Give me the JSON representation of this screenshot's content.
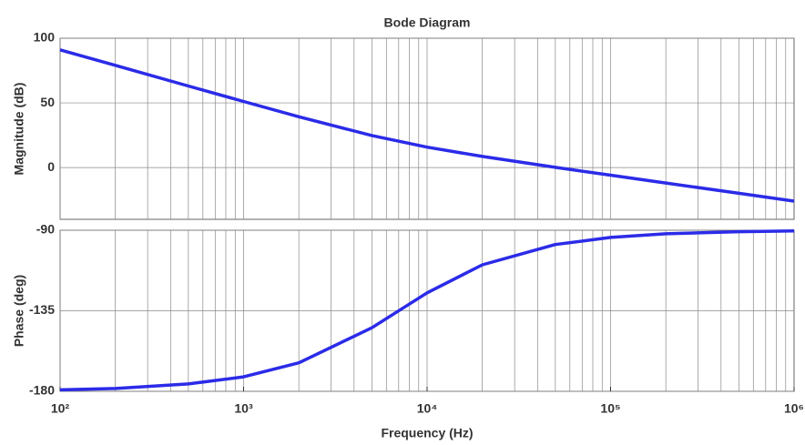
{
  "chart_data": [
    {
      "type": "line",
      "title": "Bode Diagram",
      "ylabel": "Magnitude (dB)",
      "log_x": true,
      "grid": true,
      "color": "#2b2be8",
      "x": [
        100,
        200,
        500,
        1000,
        2000,
        5000,
        10000,
        20000,
        50000,
        100000,
        200000,
        500000,
        1000000
      ],
      "values": [
        91.0,
        79.0,
        63.1,
        51.1,
        39.3,
        24.8,
        15.8,
        8.6,
        0.2,
        -5.9,
        -11.9,
        -19.9,
        -25.9
      ],
      "xlim": [
        100,
        1000000
      ],
      "ylim": [
        -40,
        100
      ],
      "yticks": [
        0,
        50,
        100
      ]
    },
    {
      "type": "line",
      "ylabel": "Phase (deg)",
      "xlabel": "Frequency (Hz)",
      "log_x": true,
      "grid": true,
      "color": "#2b2be8",
      "x": [
        100,
        200,
        500,
        1000,
        2000,
        5000,
        10000,
        20000,
        50000,
        100000,
        200000,
        500000,
        1000000
      ],
      "values": [
        -179.2,
        -178.4,
        -175.9,
        -171.9,
        -164.1,
        -144.5,
        -125.0,
        -109.3,
        -98.0,
        -94.0,
        -92.0,
        -90.8,
        -90.4
      ],
      "xlim": [
        100,
        1000000
      ],
      "ylim": [
        -180,
        -90
      ],
      "yticks": [
        -180,
        -135,
        -90
      ],
      "xticks": [
        {
          "value": 100,
          "label": "10²"
        },
        {
          "value": 1000,
          "label": "10³"
        },
        {
          "value": 10000,
          "label": "10⁴"
        },
        {
          "value": 100000,
          "label": "10⁵"
        },
        {
          "value": 1000000,
          "label": "10⁶"
        }
      ]
    }
  ]
}
